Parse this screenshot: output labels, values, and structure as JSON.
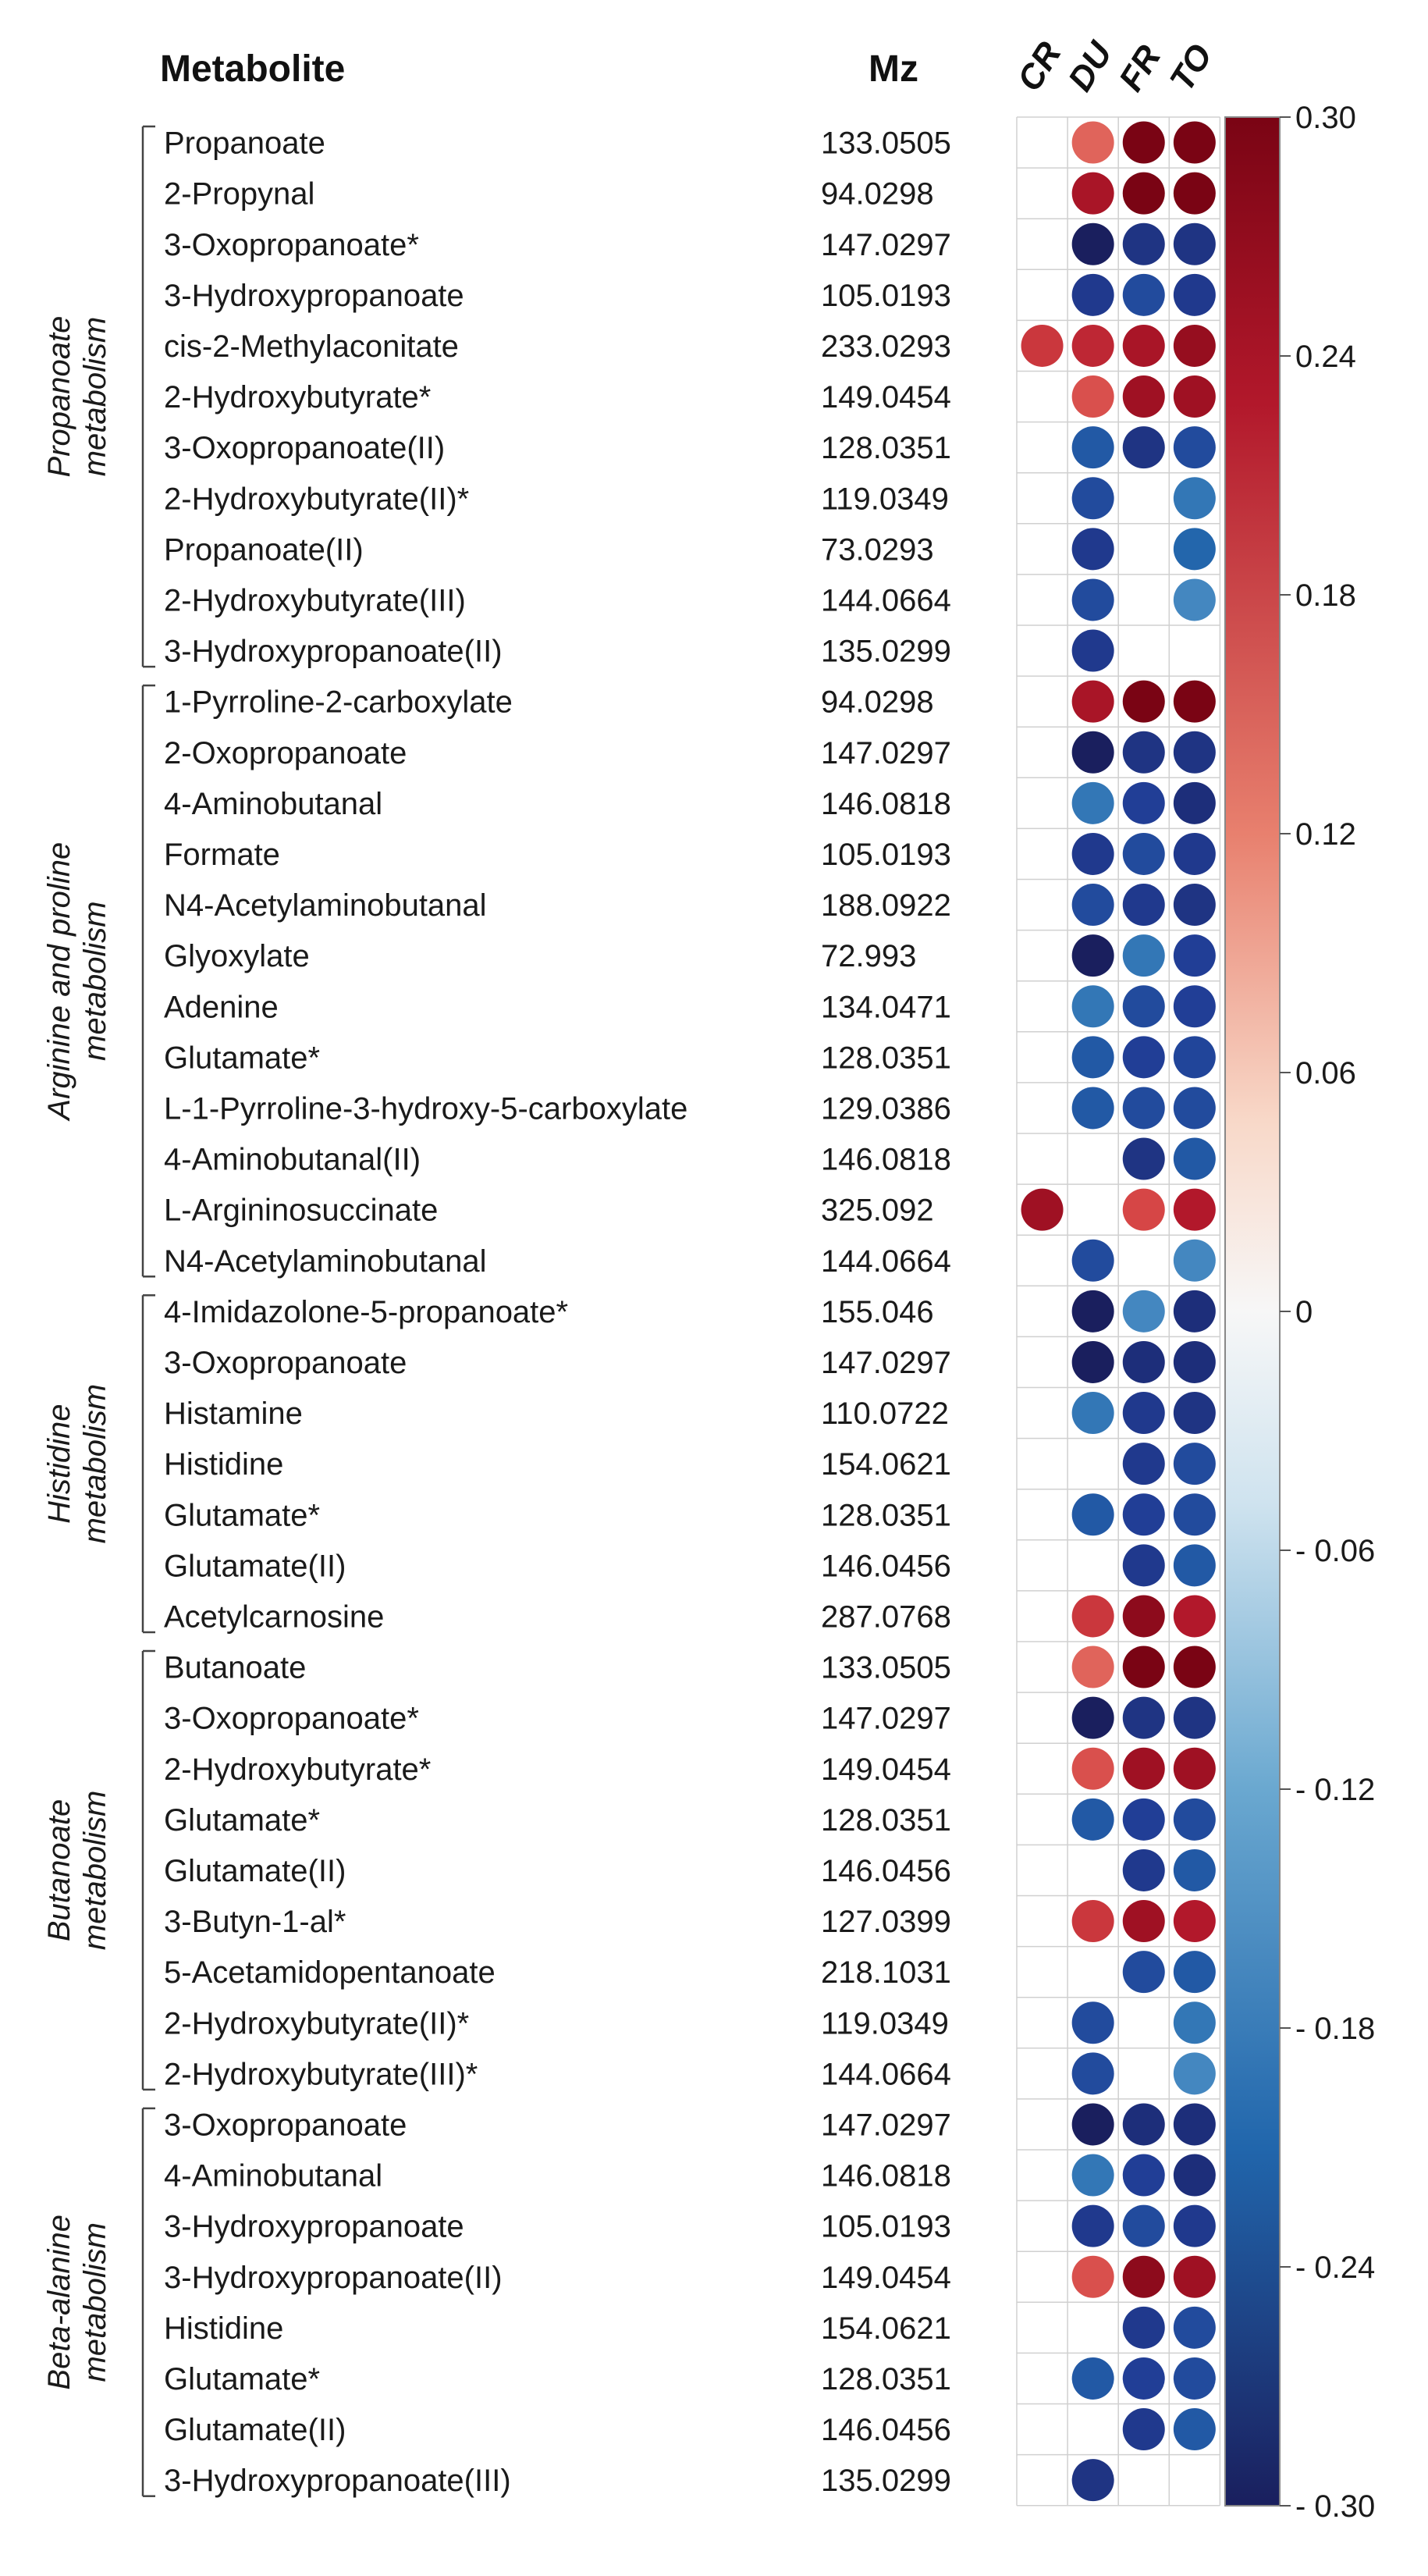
{
  "chart_data": {
    "type": "heatmap",
    "headers": {
      "metabolite": "Metabolite",
      "mz": "Mz"
    },
    "columns": [
      "CR",
      "DU",
      "FR",
      "TO"
    ],
    "colorbar": {
      "vmin": -0.3,
      "vmax": 0.3,
      "ticks": [
        0.3,
        0.24,
        0.18,
        0.12,
        0.06,
        0,
        -0.06,
        -0.12,
        -0.18,
        -0.24,
        -0.3
      ],
      "tick_labels": [
        "0.30",
        "0.24",
        "0.18",
        "0.12",
        "0.06",
        "0",
        "- 0.06",
        "- 0.12",
        "- 0.18",
        "- 0.24",
        "- 0.30"
      ],
      "low_color": "#1a1f5e",
      "mid_color": "#f7f7f7",
      "high_color": "#7a0414"
    },
    "groups": [
      {
        "label": [
          "Propanoate",
          "metabolism"
        ],
        "start": 0,
        "end": 10
      },
      {
        "label": [
          "Arginine and proline",
          "metabolism"
        ],
        "start": 11,
        "end": 22
      },
      {
        "label": [
          "Histidine",
          "metabolism"
        ],
        "start": 23,
        "end": 29
      },
      {
        "label": [
          "Butanoate",
          "metabolism"
        ],
        "start": 30,
        "end": 38
      },
      {
        "label": [
          "Beta-alanine",
          "metabolism"
        ],
        "start": 39,
        "end": 46
      }
    ],
    "rows": [
      {
        "name": "Propanoate",
        "mz": "133.0505",
        "values": [
          null,
          0.15,
          0.3,
          0.3
        ]
      },
      {
        "name": "2-Propynal",
        "mz": "94.0298",
        "values": [
          null,
          0.25,
          0.3,
          0.3
        ]
      },
      {
        "name": "3-Oxopropanoate*",
        "mz": "147.0297",
        "values": [
          null,
          -0.3,
          -0.26,
          -0.26
        ]
      },
      {
        "name": "3-Hydroxypropanoate",
        "mz": "105.0193",
        "values": [
          null,
          -0.25,
          -0.22,
          -0.25
        ]
      },
      {
        "name": "cis-2-Methylaconitate",
        "mz": "233.0293",
        "values": [
          0.2,
          0.22,
          0.25,
          0.27
        ]
      },
      {
        "name": "2-Hydroxybutyrate*",
        "mz": "149.0454",
        "values": [
          null,
          0.17,
          0.26,
          0.26
        ]
      },
      {
        "name": "3-Oxopropanoate(II)",
        "mz": "128.0351",
        "values": [
          null,
          -0.2,
          -0.26,
          -0.22
        ]
      },
      {
        "name": "2-Hydroxybutyrate(II)*",
        "mz": "119.0349",
        "values": [
          null,
          -0.22,
          null,
          -0.16
        ]
      },
      {
        "name": "Propanoate(II)",
        "mz": "73.0293",
        "values": [
          null,
          -0.25,
          null,
          -0.18
        ]
      },
      {
        "name": "2-Hydroxybutyrate(III)",
        "mz": "144.0664",
        "values": [
          null,
          -0.22,
          null,
          -0.14
        ]
      },
      {
        "name": "3-Hydroxypropanoate(II)",
        "mz": "135.0299",
        "values": [
          null,
          -0.25,
          null,
          null
        ]
      },
      {
        "name": "1-Pyrroline-2-carboxylate",
        "mz": "94.0298",
        "values": [
          null,
          0.25,
          0.3,
          0.3
        ]
      },
      {
        "name": "2-Oxopropanoate",
        "mz": "147.0297",
        "values": [
          null,
          -0.3,
          -0.26,
          -0.26
        ]
      },
      {
        "name": "4-Aminobutanal",
        "mz": "146.0818",
        "values": [
          null,
          -0.16,
          -0.24,
          -0.27
        ]
      },
      {
        "name": "Formate",
        "mz": "105.0193",
        "values": [
          null,
          -0.25,
          -0.22,
          -0.25
        ]
      },
      {
        "name": "N4-Acetylaminobutanal",
        "mz": "188.0922",
        "values": [
          null,
          -0.22,
          -0.25,
          -0.26
        ]
      },
      {
        "name": "Glyoxylate",
        "mz": "72.993",
        "values": [
          null,
          -0.3,
          -0.16,
          -0.24
        ]
      },
      {
        "name": "Adenine",
        "mz": "134.0471",
        "values": [
          null,
          -0.16,
          -0.22,
          -0.24
        ]
      },
      {
        "name": "Glutamate*",
        "mz": "128.0351",
        "values": [
          null,
          -0.2,
          -0.24,
          -0.23
        ]
      },
      {
        "name": "L-1-Pyrroline-3-hydroxy-5-carboxylate",
        "mz": "129.0386",
        "values": [
          null,
          -0.2,
          -0.22,
          -0.22
        ]
      },
      {
        "name": "4-Aminobutanal(II)",
        "mz": "146.0818",
        "values": [
          null,
          null,
          -0.26,
          -0.2
        ]
      },
      {
        "name": "L-Argininosuccinate",
        "mz": "325.092",
        "values": [
          0.26,
          null,
          0.18,
          0.24
        ]
      },
      {
        "name": "N4-Acetylaminobutanal",
        "mz": "144.0664",
        "values": [
          null,
          -0.22,
          null,
          -0.14
        ]
      },
      {
        "name": "4-Imidazolone-5-propanoate*",
        "mz": "155.046",
        "values": [
          null,
          -0.3,
          -0.14,
          -0.27
        ]
      },
      {
        "name": "3-Oxopropanoate",
        "mz": "147.0297",
        "values": [
          null,
          -0.3,
          -0.27,
          -0.27
        ]
      },
      {
        "name": "Histamine",
        "mz": "110.0722",
        "values": [
          null,
          -0.16,
          -0.25,
          -0.26
        ]
      },
      {
        "name": "Histidine",
        "mz": "154.0621",
        "values": [
          null,
          null,
          -0.25,
          -0.22
        ]
      },
      {
        "name": "Glutamate*",
        "mz": "128.0351",
        "values": [
          null,
          -0.2,
          -0.24,
          -0.22
        ]
      },
      {
        "name": "Glutamate(II)",
        "mz": "146.0456",
        "values": [
          null,
          null,
          -0.25,
          -0.2
        ]
      },
      {
        "name": "Acetylcarnosine",
        "mz": "287.0768",
        "values": [
          null,
          0.2,
          0.28,
          0.24
        ]
      },
      {
        "name": "Butanoate",
        "mz": "133.0505",
        "values": [
          null,
          0.15,
          0.3,
          0.3
        ]
      },
      {
        "name": "3-Oxopropanoate*",
        "mz": "147.0297",
        "values": [
          null,
          -0.3,
          -0.26,
          -0.26
        ]
      },
      {
        "name": "2-Hydroxybutyrate*",
        "mz": "149.0454",
        "values": [
          null,
          0.17,
          0.26,
          0.26
        ]
      },
      {
        "name": "Glutamate*",
        "mz": "128.0351",
        "values": [
          null,
          -0.2,
          -0.24,
          -0.22
        ]
      },
      {
        "name": "Glutamate(II)",
        "mz": "146.0456",
        "values": [
          null,
          null,
          -0.25,
          -0.2
        ]
      },
      {
        "name": "3-Butyn-1-al*",
        "mz": "127.0399",
        "values": [
          null,
          0.2,
          0.26,
          0.24
        ]
      },
      {
        "name": "5-Acetamidopentanoate",
        "mz": "218.1031",
        "values": [
          null,
          null,
          -0.22,
          -0.2
        ]
      },
      {
        "name": "2-Hydroxybutyrate(II)*",
        "mz": "119.0349",
        "values": [
          null,
          -0.22,
          null,
          -0.16
        ]
      },
      {
        "name": "2-Hydroxybutyrate(III)*",
        "mz": "144.0664",
        "values": [
          null,
          -0.22,
          null,
          -0.14
        ]
      },
      {
        "name": "3-Oxopropanoate",
        "mz": "147.0297",
        "values": [
          null,
          -0.3,
          -0.27,
          -0.27
        ]
      },
      {
        "name": "4-Aminobutanal",
        "mz": "146.0818",
        "values": [
          null,
          -0.16,
          -0.24,
          -0.27
        ]
      },
      {
        "name": "3-Hydroxypropanoate",
        "mz": "105.0193",
        "values": [
          null,
          -0.25,
          -0.22,
          -0.25
        ]
      },
      {
        "name": "3-Hydroxypropanoate(II)",
        "mz": "149.0454",
        "values": [
          null,
          0.17,
          0.28,
          0.26
        ]
      },
      {
        "name": "Histidine",
        "mz": "154.0621",
        "values": [
          null,
          null,
          -0.25,
          -0.22
        ]
      },
      {
        "name": "Glutamate*",
        "mz": "128.0351",
        "values": [
          null,
          -0.2,
          -0.24,
          -0.22
        ]
      },
      {
        "name": "Glutamate(II)",
        "mz": "146.0456",
        "values": [
          null,
          null,
          -0.25,
          -0.2
        ]
      },
      {
        "name": "3-Hydroxypropanoate(III)",
        "mz": "135.0299",
        "values": [
          null,
          -0.26,
          null,
          null
        ]
      }
    ]
  }
}
